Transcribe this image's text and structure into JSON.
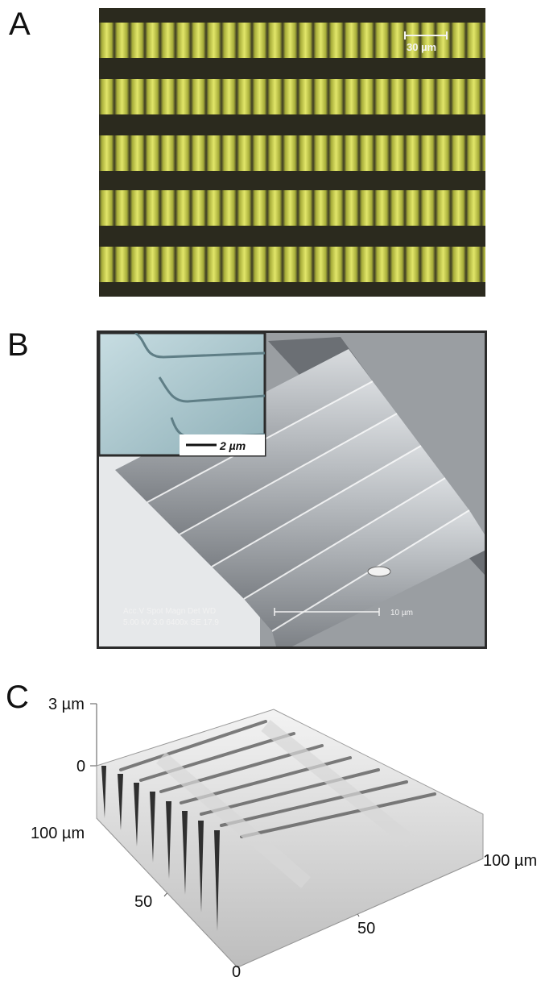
{
  "figure": {
    "panel_a": {
      "letter": "A",
      "scale_bar": "30 µm"
    },
    "panel_b": {
      "letter": "B",
      "inset_scale_bar": "2 µm",
      "sem_header": "Acc.V   Spot Magn    Det  WD",
      "sem_values": "5.00 kV 3.0   6400x    SE   17.9",
      "sem_scale_bar": "10 µm"
    },
    "panel_c": {
      "letter": "C",
      "z_top_label": "3 µm",
      "z_zero_label": "0",
      "y_max_label": "100 µm",
      "y_mid_label": "50",
      "x_origin_label": "0",
      "x_mid_label": "50",
      "x_max_label": "100 µm"
    }
  }
}
